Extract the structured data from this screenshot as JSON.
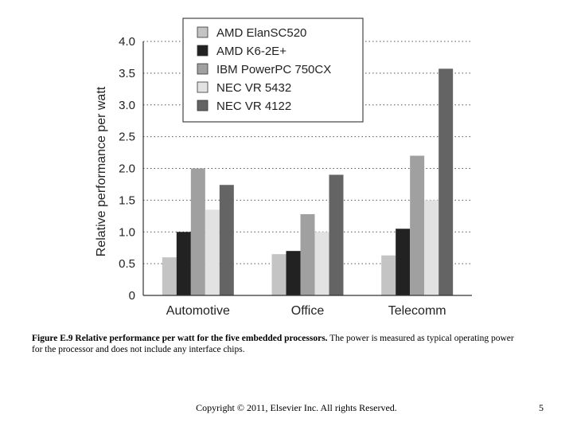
{
  "chart_data": {
    "type": "bar",
    "categories": [
      "Automotive",
      "Office",
      "Telecomm"
    ],
    "series": [
      {
        "name": "AMD ElanSC520",
        "color": "#c4c4c4",
        "values": [
          0.6,
          0.65,
          0.63
        ]
      },
      {
        "name": "AMD K6-2E+",
        "color": "#222222",
        "values": [
          1.0,
          0.7,
          1.05
        ]
      },
      {
        "name": "IBM PowerPC 750CX",
        "color": "#a0a0a0",
        "values": [
          2.0,
          1.28,
          2.2
        ]
      },
      {
        "name": "NEC VR 5432",
        "color": "#e2e2e2",
        "values": [
          1.35,
          1.0,
          1.5
        ]
      },
      {
        "name": "NEC VR 4122",
        "color": "#646464",
        "values": [
          1.74,
          1.9,
          3.57
        ]
      }
    ],
    "ylabel": "Relative performance per watt",
    "xlabel": "",
    "ylim": [
      0,
      4.0
    ],
    "yticks": [
      "0",
      "0.5",
      "1.0",
      "1.5",
      "2.0",
      "2.5",
      "3.0",
      "3.5",
      "4.0"
    ],
    "grid": "dotted-horizontal",
    "legend_position": "top-center"
  },
  "caption": {
    "lead": "Figure E.9 Relative performance per watt for the five embedded processors.",
    "rest": " The power is measured as typical operating power for the processor and does not include any interface chips."
  },
  "footer": {
    "copyright": "Copyright © 2011, Elsevier Inc. All rights Reserved.",
    "page_number": "5"
  }
}
